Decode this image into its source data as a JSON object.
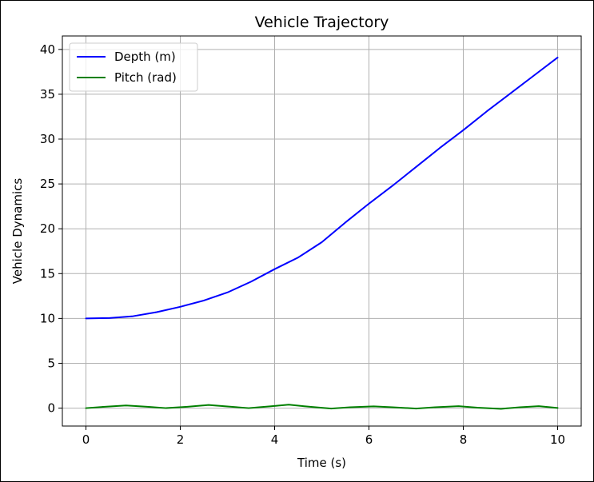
{
  "chart_data": {
    "type": "line",
    "title": "Vehicle Trajectory",
    "xlabel": "Time (s)",
    "ylabel": "Vehicle Dynamics",
    "xlim": [
      -0.5,
      10.5
    ],
    "ylim": [
      -2.0,
      41.5
    ],
    "xticks": [
      0,
      2,
      4,
      6,
      8,
      10
    ],
    "yticks": [
      0,
      5,
      10,
      15,
      20,
      25,
      30,
      35,
      40
    ],
    "grid": true,
    "legend_position": "upper-left",
    "series": [
      {
        "name": "Depth (m)",
        "color": "#0000ff",
        "x": [
          0,
          0.5,
          1,
          1.5,
          2,
          2.5,
          3,
          3.5,
          4,
          4.5,
          5,
          5.5,
          6,
          6.5,
          7,
          7.5,
          8,
          8.5,
          9,
          9.5,
          10
        ],
        "y": [
          10.0,
          10.05,
          10.25,
          10.7,
          11.3,
          12.0,
          12.9,
          14.1,
          15.5,
          16.8,
          18.5,
          20.7,
          22.8,
          24.8,
          26.9,
          29.0,
          31.0,
          33.1,
          35.1,
          37.1,
          39.1
        ]
      },
      {
        "name": "Pitch (rad)",
        "color": "#008000",
        "x": [
          0,
          0.4,
          0.85,
          1.3,
          1.7,
          2.15,
          2.6,
          3.0,
          3.45,
          3.9,
          4.3,
          4.75,
          5.2,
          5.6,
          6.1,
          6.5,
          7.0,
          7.4,
          7.9,
          8.3,
          8.8,
          9.2,
          9.6,
          10.0
        ],
        "y": [
          0.0,
          0.15,
          0.3,
          0.15,
          0.0,
          0.15,
          0.35,
          0.18,
          0.0,
          0.2,
          0.38,
          0.15,
          -0.05,
          0.1,
          0.2,
          0.1,
          -0.05,
          0.1,
          0.22,
          0.05,
          -0.08,
          0.1,
          0.22,
          0.02
        ]
      }
    ]
  }
}
